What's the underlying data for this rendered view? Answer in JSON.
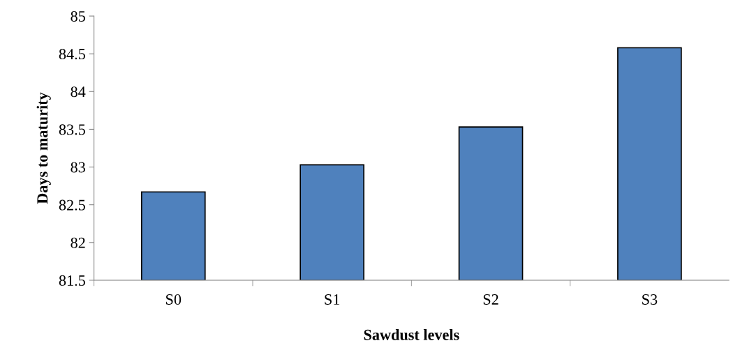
{
  "chart_data": {
    "type": "bar",
    "xlabel": "Sawdust levels",
    "ylabel": "Days to maturity",
    "categories": [
      "S0",
      "S1",
      "S2",
      "S3"
    ],
    "values": [
      82.67,
      83.03,
      83.53,
      84.58
    ],
    "color": "#4f81bd",
    "ylim": [
      81.5,
      85
    ],
    "yticks": [
      81.5,
      82,
      82.5,
      83,
      83.5,
      84,
      84.5,
      85
    ],
    "grid": false
  }
}
